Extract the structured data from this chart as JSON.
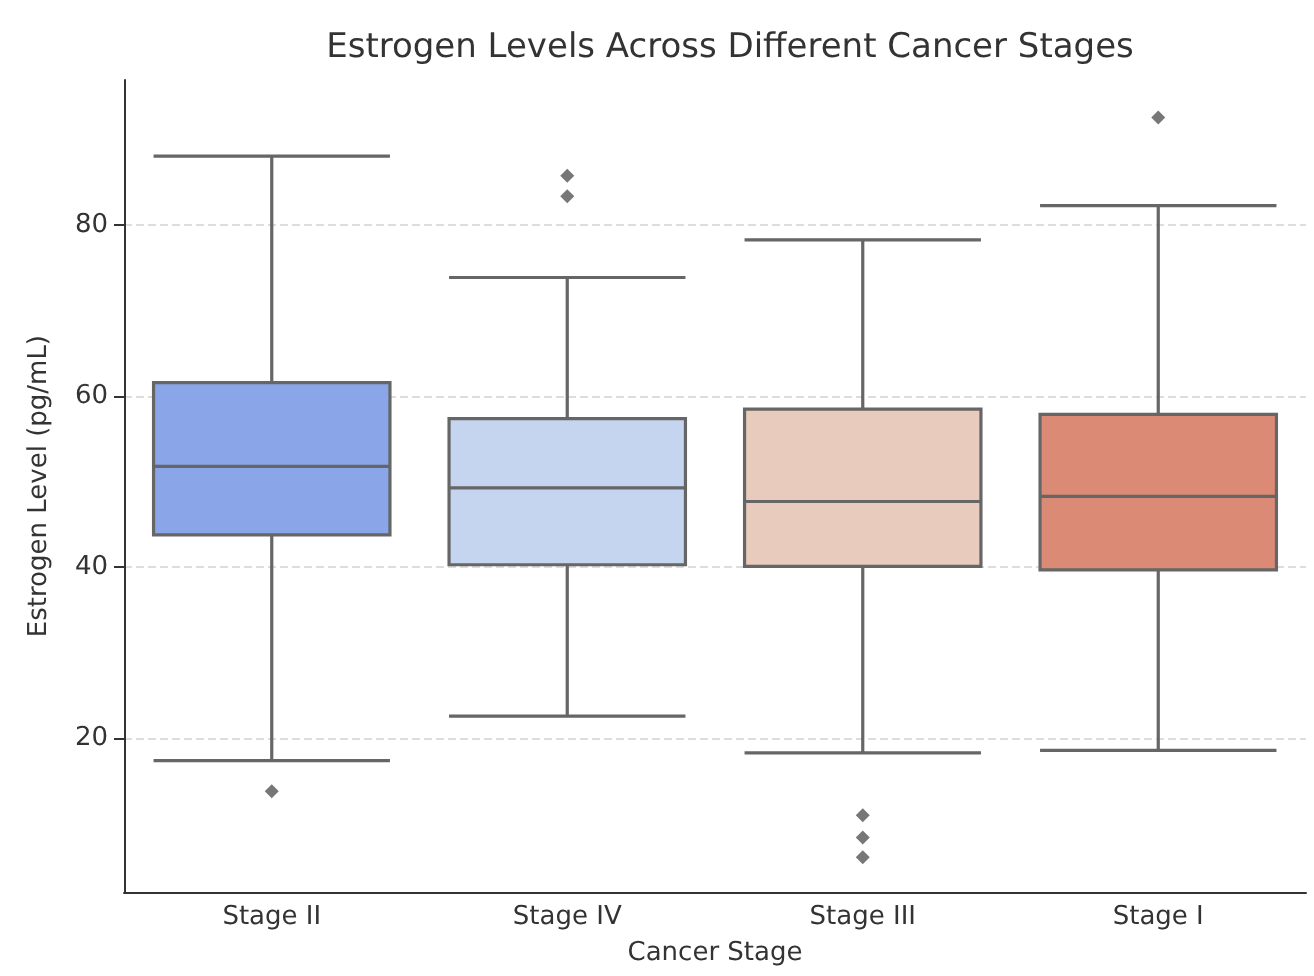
{
  "chart_data": {
    "type": "box",
    "title": "Estrogen Levels Across Different Cancer Stages",
    "xlabel": "Cancer Stage",
    "ylabel": "Estrogen Level (pg/mL)",
    "categories": [
      "Stage II",
      "Stage IV",
      "Stage III",
      "Stage I"
    ],
    "colors": [
      "#8aa6e8",
      "#c6d5ef",
      "#e9cbbd",
      "#db8b75"
    ],
    "boxes": [
      {
        "low": 17.4,
        "q1": 43.8,
        "median": 51.8,
        "q3": 61.6,
        "high": 88.1,
        "outliers": [
          13.8
        ]
      },
      {
        "low": 22.6,
        "q1": 40.3,
        "median": 49.3,
        "q3": 57.4,
        "high": 73.9,
        "outliers": [
          83.4,
          85.8
        ]
      },
      {
        "low": 18.3,
        "q1": 40.1,
        "median": 47.7,
        "q3": 58.5,
        "high": 78.3,
        "outliers": [
          6.1,
          8.4,
          11.0
        ]
      },
      {
        "low": 18.6,
        "q1": 39.7,
        "median": 48.3,
        "q3": 57.9,
        "high": 82.3,
        "outliers": [
          92.6
        ]
      }
    ],
    "ylim": [
      2,
      97
    ],
    "yticks": [
      20,
      40,
      60,
      80
    ],
    "grid": "y",
    "marker": "diamond"
  }
}
